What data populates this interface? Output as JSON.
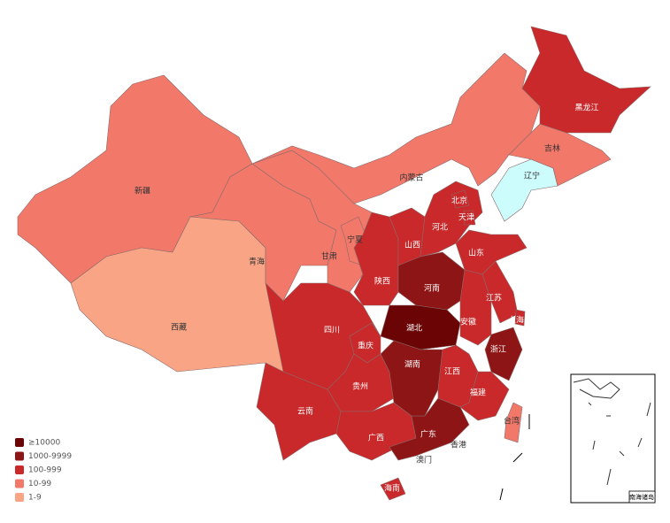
{
  "legend": [
    {
      "label": "≥10000",
      "color": "#6b0505"
    },
    {
      "label": "1000-9999",
      "color": "#8e1515"
    },
    {
      "label": "100-999",
      "color": "#c9292a"
    },
    {
      "label": "10-99",
      "color": "#f2786a"
    },
    {
      "label": "1-9",
      "color": "#f9a585"
    }
  ],
  "provinces": [
    {
      "name": "新疆",
      "color": "#f2786a"
    },
    {
      "name": "西藏",
      "color": "#f9a585"
    },
    {
      "name": "青海",
      "color": "#f2786a"
    },
    {
      "name": "甘肃",
      "color": "#f2786a"
    },
    {
      "name": "内蒙古",
      "color": "#f2786a"
    },
    {
      "name": "宁夏",
      "color": "#f2786a"
    },
    {
      "name": "陕西",
      "color": "#c9292a"
    },
    {
      "name": "山西",
      "color": "#c9292a"
    },
    {
      "name": "河北",
      "color": "#c9292a"
    },
    {
      "name": "北京",
      "color": "#c9292a"
    },
    {
      "name": "天津",
      "color": "#c9292a"
    },
    {
      "name": "山东",
      "color": "#c9292a"
    },
    {
      "name": "河南",
      "color": "#8e1515"
    },
    {
      "name": "湖北",
      "color": "#6b0505"
    },
    {
      "name": "四川",
      "color": "#c9292a"
    },
    {
      "name": "重庆",
      "color": "#c9292a"
    },
    {
      "name": "贵州",
      "color": "#c9292a"
    },
    {
      "name": "云南",
      "color": "#c9292a"
    },
    {
      "name": "广西",
      "color": "#c9292a"
    },
    {
      "name": "广东",
      "color": "#8e1515"
    },
    {
      "name": "海南",
      "color": "#c9292a"
    },
    {
      "name": "湖南",
      "color": "#8e1515"
    },
    {
      "name": "江西",
      "color": "#c9292a"
    },
    {
      "name": "福建",
      "color": "#c9292a"
    },
    {
      "name": "浙江",
      "color": "#8e1515"
    },
    {
      "name": "安徽",
      "color": "#c9292a"
    },
    {
      "name": "江苏",
      "color": "#c9292a"
    },
    {
      "name": "上海",
      "color": "#c9292a"
    },
    {
      "name": "台湾",
      "color": "#f2786a"
    },
    {
      "name": "辽宁",
      "color": "#cdfcfc"
    },
    {
      "name": "吉林",
      "color": "#f2786a"
    },
    {
      "name": "黑龙江",
      "color": "#c9292a"
    }
  ],
  "labels": [
    "香港",
    "澳门"
  ],
  "inset_label": "南海诸岛"
}
